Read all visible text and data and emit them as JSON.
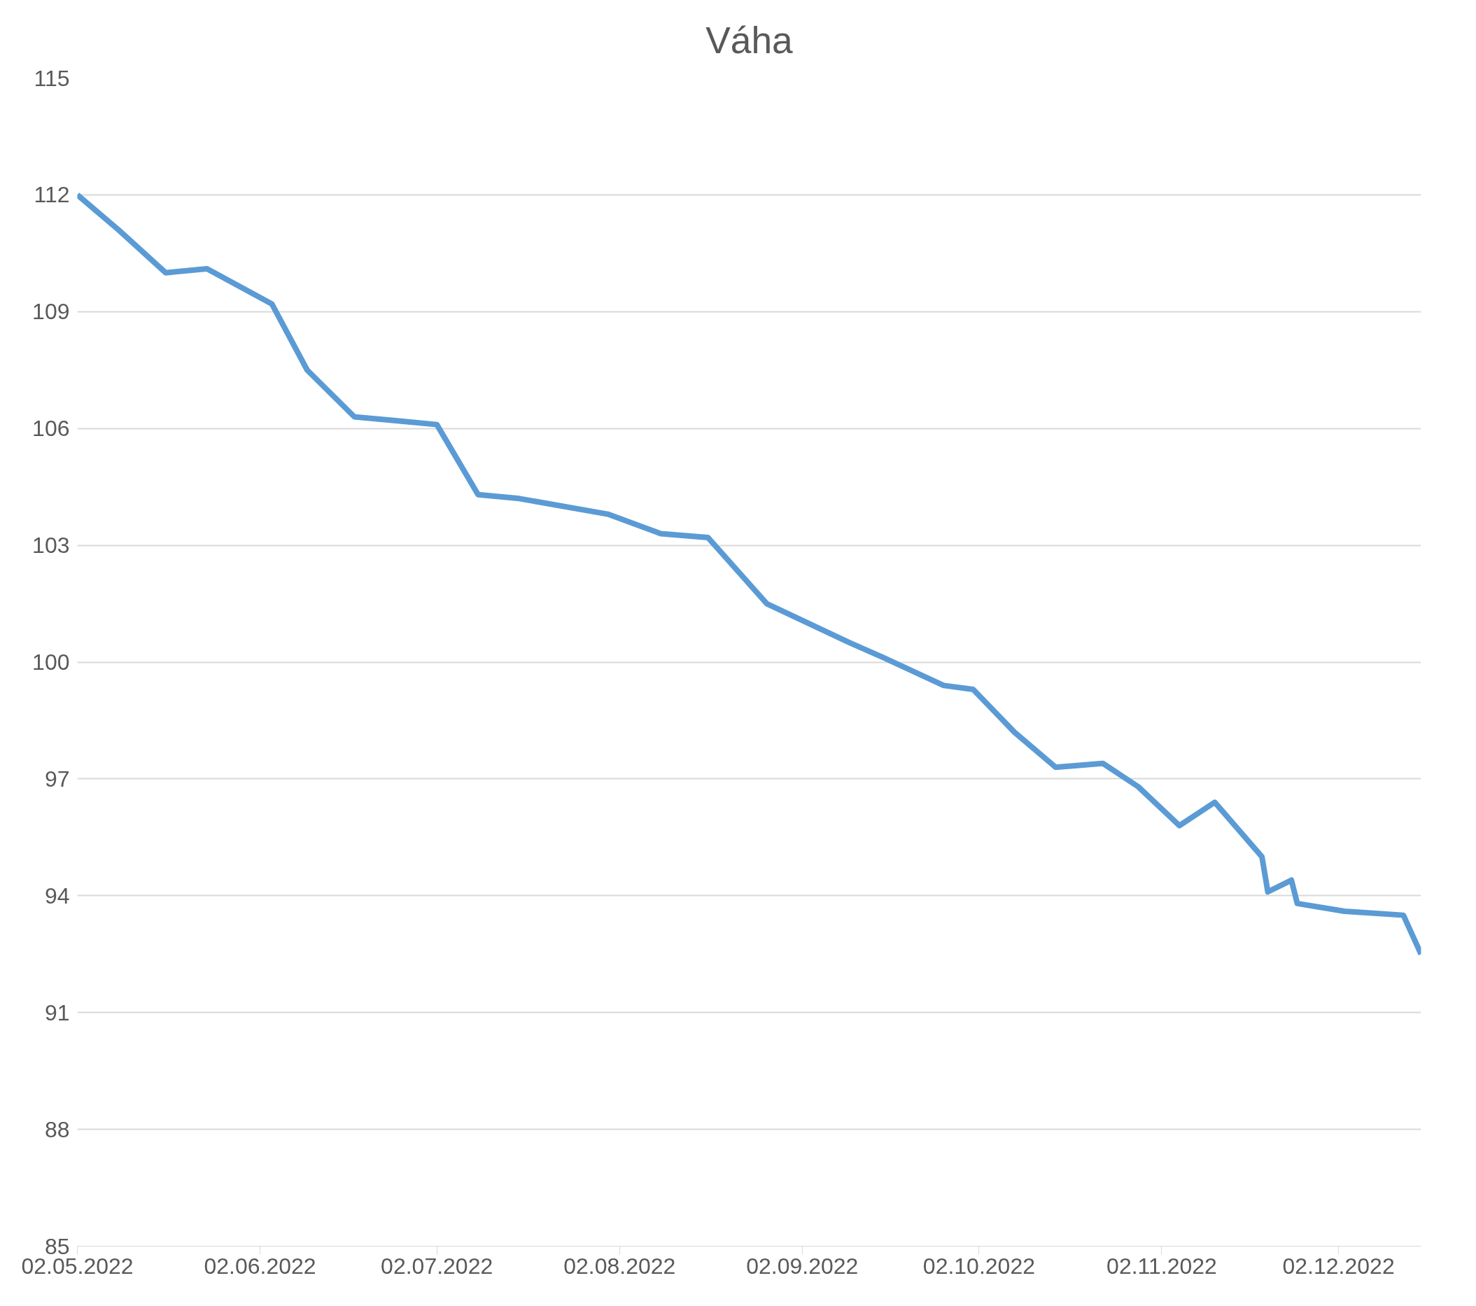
{
  "chart_data": {
    "type": "line",
    "title": "Váha",
    "x": [
      "2022-05-02",
      "2022-05-09",
      "2022-05-17",
      "2022-05-24",
      "2022-06-04",
      "2022-06-10",
      "2022-06-18",
      "2022-06-25",
      "2022-07-02",
      "2022-07-09",
      "2022-07-16",
      "2022-07-31",
      "2022-08-09",
      "2022-08-17",
      "2022-08-27",
      "2022-09-10",
      "2022-09-16",
      "2022-09-26",
      "2022-10-01",
      "2022-10-08",
      "2022-10-15",
      "2022-10-23",
      "2022-10-29",
      "2022-11-05",
      "2022-11-11",
      "2022-11-19",
      "2022-11-20",
      "2022-11-24",
      "2022-11-25",
      "2022-12-03",
      "2022-12-13",
      "2022-12-16"
    ],
    "series": [
      {
        "color": "#5b9bd5",
        "values": [
          112.0,
          111.1,
          110.0,
          110.1,
          109.2,
          107.5,
          106.3,
          106.2,
          106.1,
          104.3,
          104.2,
          103.8,
          103.3,
          103.2,
          101.5,
          100.5,
          100.1,
          99.4,
          99.3,
          98.2,
          97.3,
          97.4,
          96.8,
          95.8,
          96.4,
          95.0,
          94.1,
          94.4,
          93.8,
          93.6,
          93.5,
          92.5
        ]
      }
    ],
    "xlim": [
      "2022-05-02",
      "2022-12-16"
    ],
    "xticks": [
      {
        "value": "2022-05-02",
        "label": "02.05.2022"
      },
      {
        "value": "2022-06-02",
        "label": "02.06.2022"
      },
      {
        "value": "2022-07-02",
        "label": "02.07.2022"
      },
      {
        "value": "2022-08-02",
        "label": "02.08.2022"
      },
      {
        "value": "2022-09-02",
        "label": "02.09.2022"
      },
      {
        "value": "2022-10-02",
        "label": "02.10.2022"
      },
      {
        "value": "2022-11-02",
        "label": "02.11.2022"
      },
      {
        "value": "2022-12-02",
        "label": "02.12.2022"
      }
    ],
    "ylim": [
      85,
      115
    ],
    "yticks": [
      85,
      88,
      91,
      94,
      97,
      100,
      103,
      106,
      109,
      112,
      115
    ],
    "grid": "y",
    "line_style": "solid",
    "marker": "none"
  }
}
